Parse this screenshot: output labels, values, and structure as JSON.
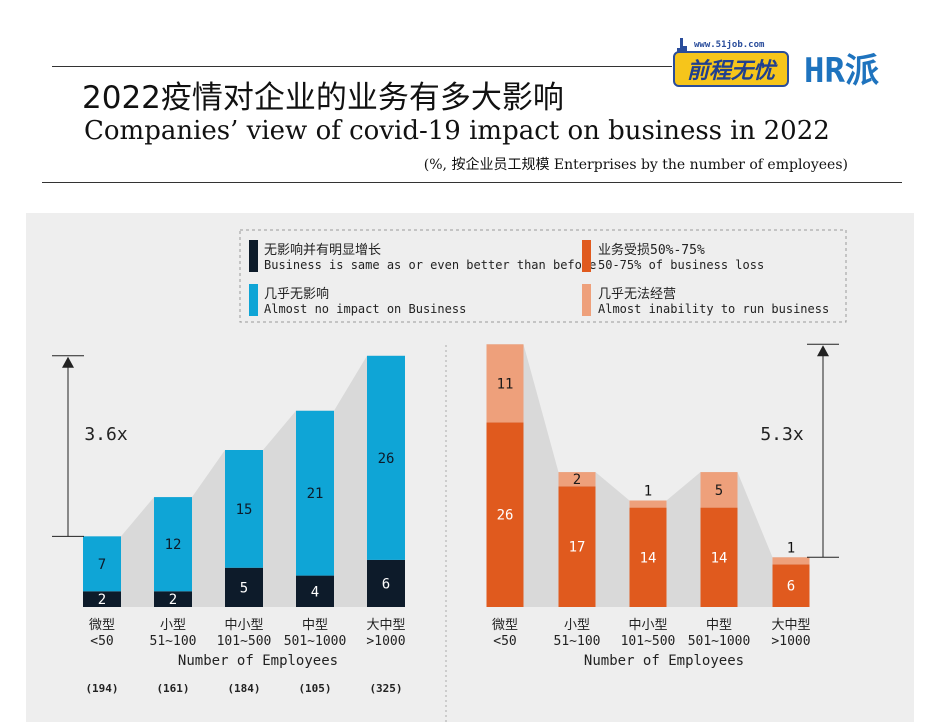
{
  "header": {
    "title_cn": "2022疫情对企业的业务有多大影响",
    "title_en": "Companies’ view of covid-19 impact on business in 2022",
    "subtitle": "(%, 按企业员工规模  Enterprises by the number of employees)"
  },
  "logos": {
    "site_url": "www.51job.com",
    "brand_cn": "前程无忧",
    "hr_logo": "HR派"
  },
  "legend": {
    "items": [
      {
        "cn": "无影响并有明显增长",
        "en": "Business is same as or even better than before",
        "color": "#0d1b2a"
      },
      {
        "cn": "几乎无影响",
        "en": "Almost no impact on Business",
        "color": "#0fa5d6"
      },
      {
        "cn": "业务受损50%-75%",
        "en": "50-75% of business loss",
        "color": "#e05a1e"
      },
      {
        "cn": "几乎无法经营",
        "en": "Almost inability to run business",
        "color": "#eea07b"
      }
    ]
  },
  "sample_sizes": [
    "(194)",
    "(161)",
    "(184)",
    "(105)",
    "(325)"
  ],
  "chart_data": [
    {
      "type": "bar",
      "stacked": true,
      "categories_cn": [
        "微型",
        "小型",
        "中小型",
        "中型",
        "大中型"
      ],
      "categories": [
        "<50",
        "51~100",
        "101~500",
        "501~1000",
        ">1000"
      ],
      "xlabel": "Number of Employees",
      "series": [
        {
          "name": "无影响并有明显增长 Business is same as or even better than before",
          "values": [
            2,
            2,
            5,
            4,
            6
          ],
          "color": "#0d1b2a",
          "label_color": "#ffffff"
        },
        {
          "name": "几乎无影响 Almost no impact on Business",
          "values": [
            7,
            12,
            15,
            21,
            26
          ],
          "color": "#0fa5d6",
          "label_color": "#0d1b2a"
        }
      ],
      "annotation": "3.6x",
      "ylim": [
        0,
        32
      ]
    },
    {
      "type": "bar",
      "stacked": true,
      "categories_cn": [
        "微型",
        "小型",
        "中小型",
        "中型",
        "大中型"
      ],
      "categories": [
        "<50",
        "51~100",
        "101~500",
        "501~1000",
        ">1000"
      ],
      "xlabel": "Number of Employees",
      "series": [
        {
          "name": "业务受损50%-75% 50-75% of business loss",
          "values": [
            26,
            17,
            14,
            14,
            6
          ],
          "color": "#e05a1e",
          "label_color": "#ffffff"
        },
        {
          "name": "几乎无法经营 Almost inability to run business",
          "values": [
            11,
            2,
            1,
            5,
            1
          ],
          "color": "#eea07b",
          "label_color": "#1a1a1a"
        }
      ],
      "annotation": "5.3x",
      "ylim": [
        0,
        37
      ]
    }
  ]
}
